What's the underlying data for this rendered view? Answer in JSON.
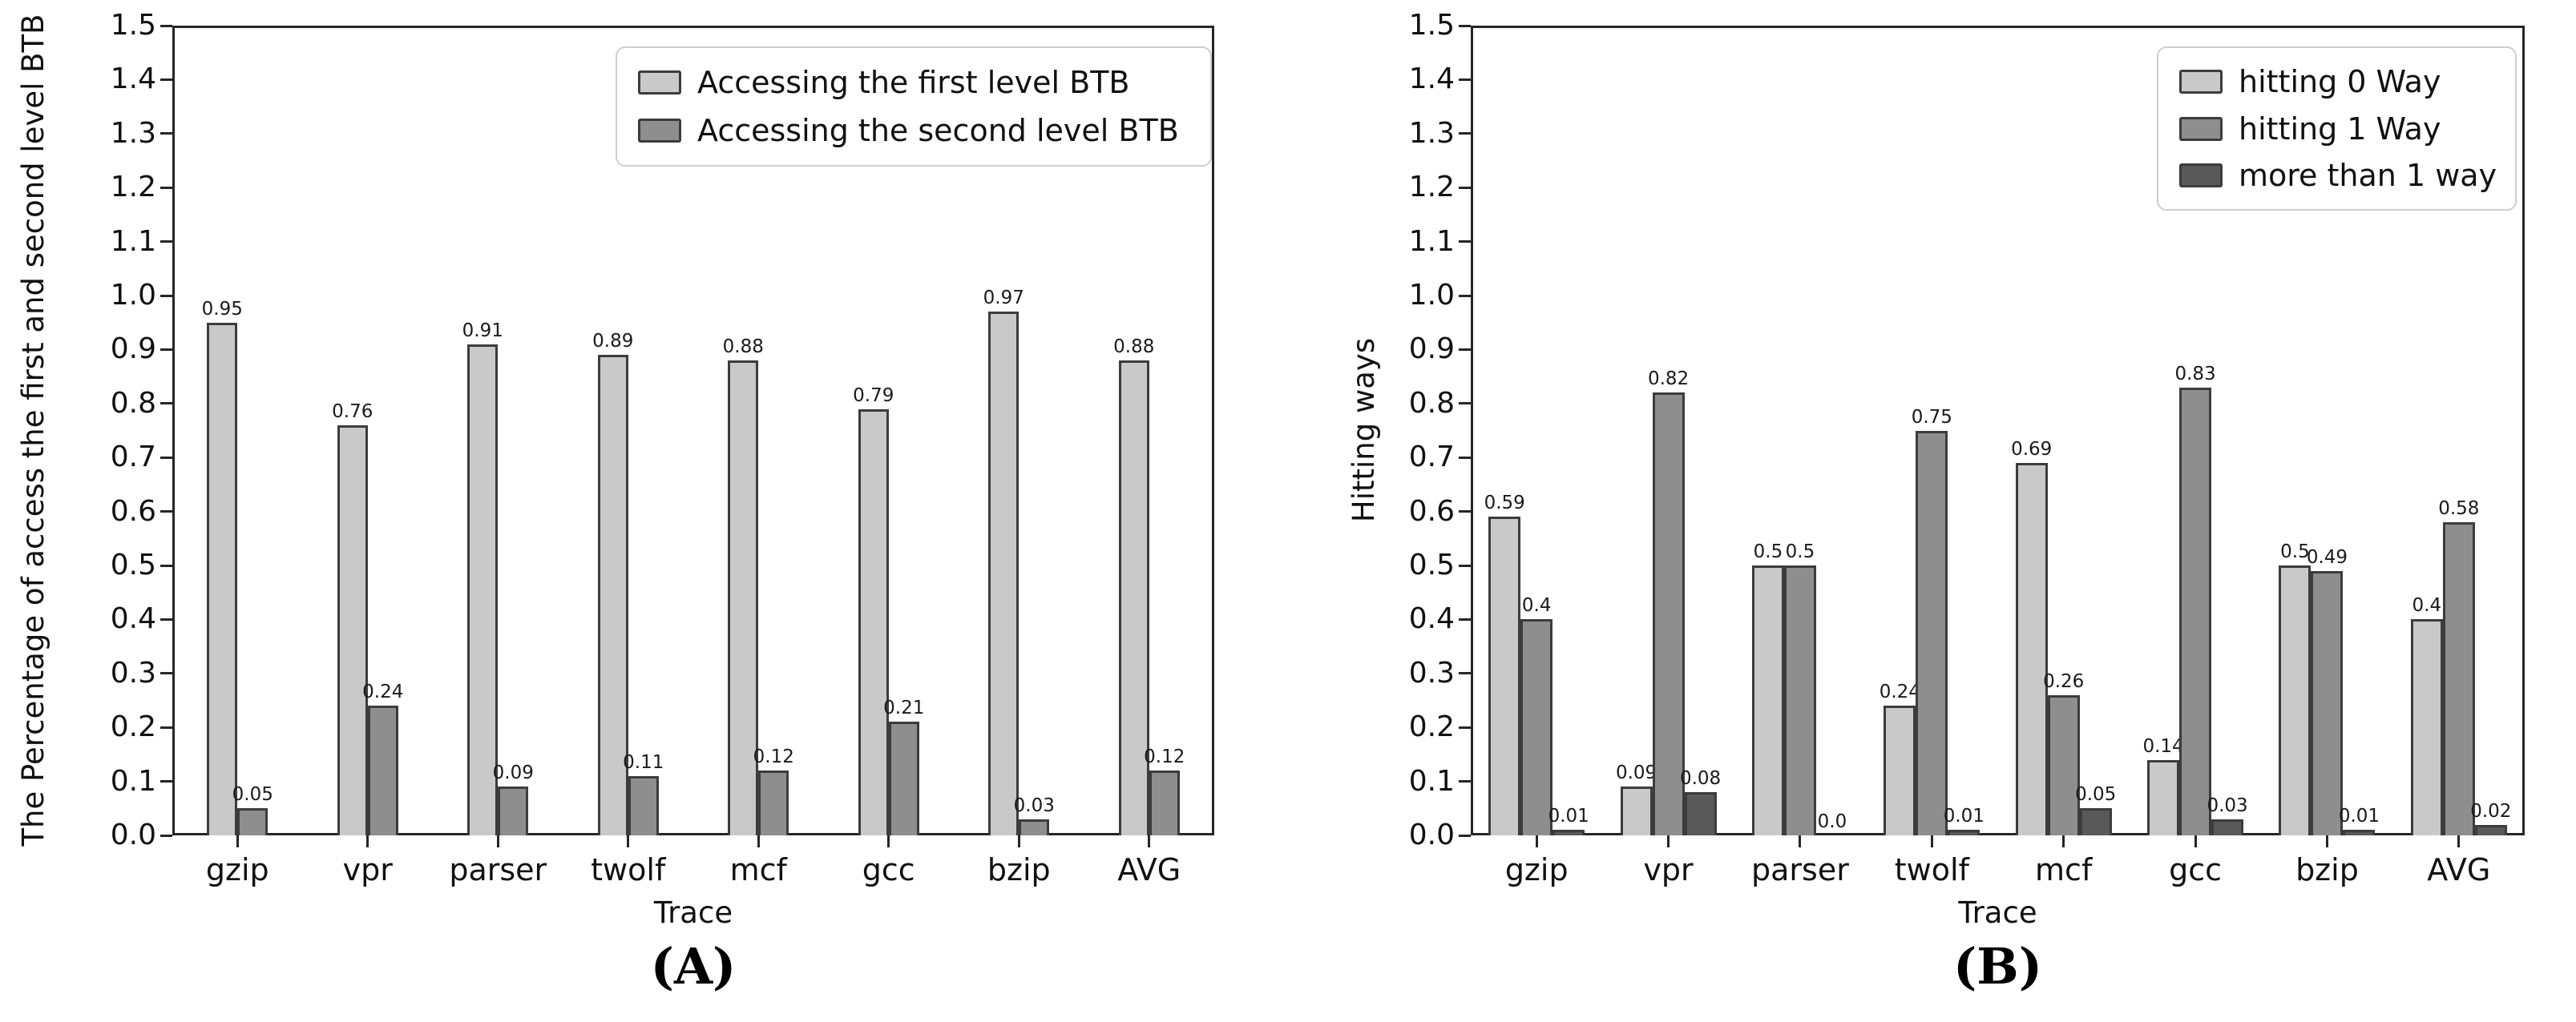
{
  "chart_data": [
    {
      "type": "bar",
      "caption": "(A)",
      "xlabel": "Trace",
      "ylabel": "The Percentage of access the first and second level BTB",
      "categories": [
        "gzip",
        "vpr",
        "parser",
        "twolf",
        "mcf",
        "gcc",
        "bzip",
        "AVG"
      ],
      "ylim": [
        0.0,
        1.5
      ],
      "ytick_step": 0.1,
      "grid": false,
      "legend_position": "upper right",
      "series": [
        {
          "name": "Accessing the first level BTB",
          "color": "#c9c9c9",
          "values": [
            0.95,
            0.76,
            0.91,
            0.89,
            0.88,
            0.79,
            0.97,
            0.88
          ],
          "value_labels": [
            "0.95",
            "0.76",
            "0.91",
            "0.89",
            "0.88",
            "0.79",
            "0.97",
            "0.88"
          ]
        },
        {
          "name": "Accessing the second level BTB",
          "color": "#8e8e8e",
          "values": [
            0.05,
            0.24,
            0.09,
            0.11,
            0.12,
            0.21,
            0.03,
            0.12
          ],
          "value_labels": [
            "0.05",
            "0.24",
            "0.09",
            "0.11",
            "0.12",
            "0.21",
            "0.03",
            "0.12"
          ]
        }
      ]
    },
    {
      "type": "bar",
      "caption": "(B)",
      "xlabel": "Trace",
      "ylabel": "Hitting ways",
      "categories": [
        "gzip",
        "vpr",
        "parser",
        "twolf",
        "mcf",
        "gcc",
        "bzip",
        "AVG"
      ],
      "ylim": [
        0.0,
        1.5
      ],
      "ytick_step": 0.1,
      "grid": false,
      "legend_position": "upper right",
      "series": [
        {
          "name": "hitting 0 Way",
          "color": "#c9c9c9",
          "values": [
            0.59,
            0.09,
            0.5,
            0.24,
            0.69,
            0.14,
            0.5,
            0.4
          ],
          "value_labels": [
            "0.59",
            "0.09",
            "0.5",
            "0.24",
            "0.69",
            "0.14",
            "0.5",
            "0.4"
          ]
        },
        {
          "name": "hitting 1 Way",
          "color": "#8e8e8e",
          "values": [
            0.4,
            0.82,
            0.5,
            0.75,
            0.26,
            0.83,
            0.49,
            0.58
          ],
          "value_labels": [
            "0.4",
            "0.82",
            "0.5",
            "0.75",
            "0.26",
            "0.83",
            "0.49",
            "0.58"
          ]
        },
        {
          "name": "more than 1 way",
          "color": "#595959",
          "values": [
            0.01,
            0.08,
            0.0,
            0.01,
            0.05,
            0.03,
            0.01,
            0.02
          ],
          "value_labels": [
            "0.01",
            "0.08",
            "0.0",
            "0.01",
            "0.05",
            "0.03",
            "0.01",
            "0.02"
          ]
        }
      ]
    }
  ]
}
